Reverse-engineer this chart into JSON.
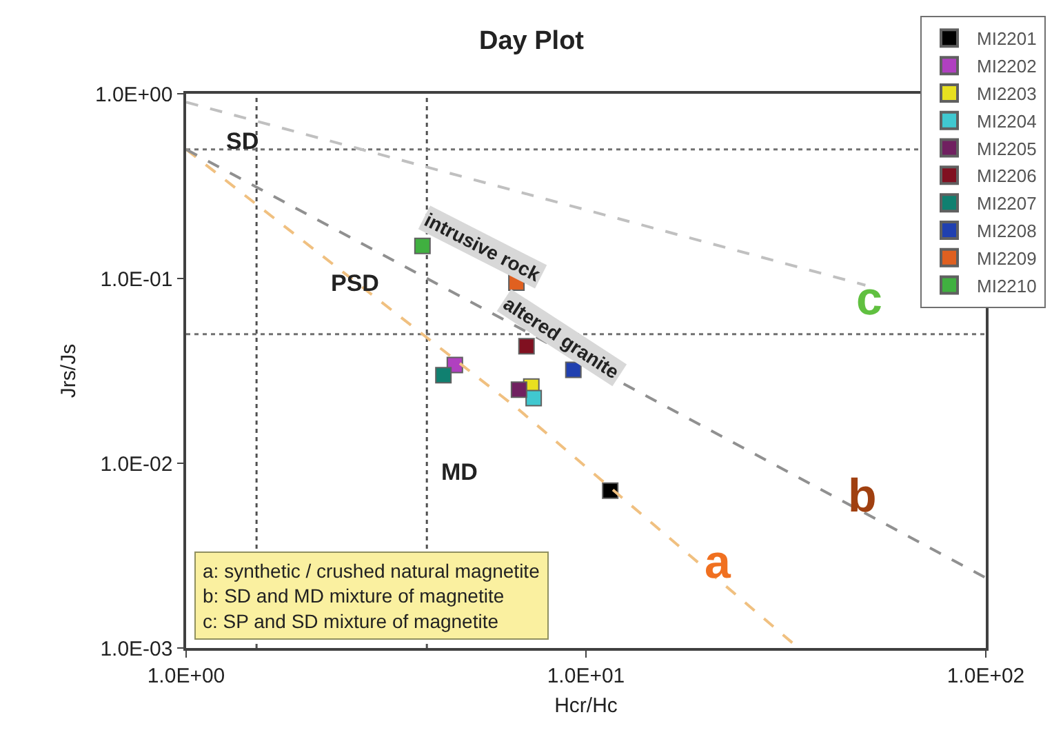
{
  "chart_data": {
    "type": "scatter",
    "title": "Day Plot",
    "xlabel": "Hcr/Hc",
    "ylabel": "Jrs/Js",
    "log": "xy",
    "xlim": [
      1,
      100
    ],
    "ylim": [
      0.001,
      1
    ],
    "xticks": [
      {
        "value": 1,
        "label": "1.0E+00"
      },
      {
        "value": 10,
        "label": "1.0E+01"
      },
      {
        "value": 100,
        "label": "1.0E+02"
      }
    ],
    "yticks": [
      {
        "value": 0.001,
        "label": "1.0E-03"
      },
      {
        "value": 0.01,
        "label": "1.0E-02"
      },
      {
        "value": 0.1,
        "label": "1.0E-01"
      },
      {
        "value": 1,
        "label": "1.0E+00"
      }
    ],
    "grid": false,
    "legend": "top right",
    "marker": "square",
    "series": [
      {
        "name": "MI2201",
        "color": "#000000",
        "x": [
          11.5
        ],
        "values": [
          0.0071
        ]
      },
      {
        "name": "MI2202",
        "color": "#b040c0",
        "x": [
          4.7
        ],
        "values": [
          0.034
        ]
      },
      {
        "name": "MI2203",
        "color": "#e8e020",
        "x": [
          7.3
        ],
        "values": [
          0.026
        ]
      },
      {
        "name": "MI2204",
        "color": "#40c8d0",
        "x": [
          7.4
        ],
        "values": [
          0.0225
        ]
      },
      {
        "name": "MI2205",
        "color": "#702060",
        "x": [
          6.8
        ],
        "values": [
          0.025
        ]
      },
      {
        "name": "MI2206",
        "color": "#801020",
        "x": [
          7.1
        ],
        "values": [
          0.043
        ]
      },
      {
        "name": "MI2207",
        "color": "#108070",
        "x": [
          4.4
        ],
        "values": [
          0.03
        ]
      },
      {
        "name": "MI2208",
        "color": "#2040b0",
        "x": [
          9.3
        ],
        "values": [
          0.032
        ]
      },
      {
        "name": "MI2209",
        "color": "#e06020",
        "x": [
          6.7
        ],
        "values": [
          0.095
        ]
      },
      {
        "name": "MI2210",
        "color": "#40b040",
        "x": [
          3.9
        ],
        "values": [
          0.15
        ]
      },
      {
        "type": "line",
        "color": "#f0c080",
        "line_style": "dashed",
        "marker": "none",
        "x": [
          1,
          6.7,
          34
        ],
        "values": [
          0.5,
          0.02,
          0.001
        ]
      },
      {
        "type": "line",
        "color": "#909090",
        "line_style": "dashed",
        "marker": "none",
        "x": [
          1,
          100
        ],
        "values": [
          0.5,
          0.0024
        ]
      },
      {
        "type": "line",
        "color": "#c0c0c0",
        "line_style": "dashed",
        "marker": "none",
        "x": [
          1,
          50
        ],
        "values": [
          0.9,
          0.092
        ]
      }
    ],
    "ref_lines": [
      {
        "axis": "x",
        "value": 1.5,
        "color": "#505050",
        "line_style": "dotted"
      },
      {
        "axis": "x",
        "value": 4,
        "color": "#505050",
        "line_style": "dotted"
      },
      {
        "axis": "y",
        "value": 0.5,
        "color": "#707070",
        "line_style": "dotted"
      },
      {
        "axis": "y",
        "value": 0.05,
        "color": "#707070",
        "line_style": "dotted"
      }
    ],
    "annotations": [
      "SD",
      "PSD",
      "MD",
      "intrusive rock",
      "altered granite",
      "a",
      "b",
      "c",
      "a: synthetic / crushed natural magnetite",
      "b: SD and MD mixture of magnetite",
      "c: SP and SD mixture of magnetite"
    ]
  }
}
